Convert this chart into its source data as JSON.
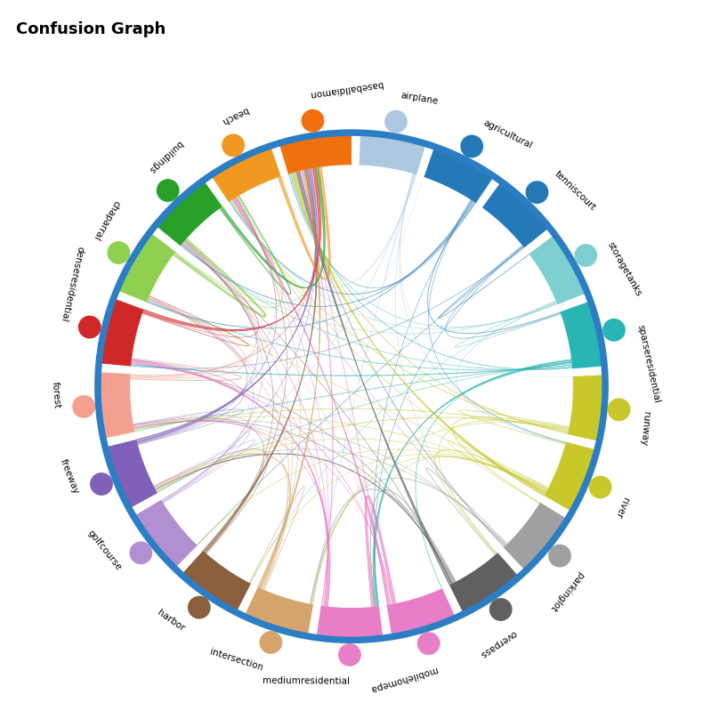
{
  "title": "Confusion Graph",
  "categories": [
    "airplane",
    "agricultural",
    "tenniscourt",
    "storagetanks",
    "sparseresidential",
    "runway",
    "river",
    "parkinglot",
    "overpass",
    "mobilehomepa",
    "mediumresidential",
    "intersection",
    "harbor",
    "golfcourse",
    "freeway",
    "forest",
    "denseresidential",
    "chaparral",
    "buildings",
    "beach",
    "baseballdiamon"
  ],
  "cat_colors": [
    "#adc8e0",
    "#2479b8",
    "#2479b8",
    "#7ecfcf",
    "#2ab5b5",
    "#c8c82a",
    "#c8c82a",
    "#a0a0a0",
    "#606060",
    "#e87ec8",
    "#e87ec8",
    "#d4a46c",
    "#8b5e3c",
    "#b090d0",
    "#8060b8",
    "#f4a090",
    "#d02828",
    "#90d050",
    "#28a028",
    "#f09820",
    "#f07010"
  ],
  "node_colors": [
    "#adc8e0",
    "#2479b8",
    "#2479b8",
    "#7ecfcf",
    "#2ab5b5",
    "#c8c82a",
    "#c8c82a",
    "#a0a0a0",
    "#606060",
    "#e87ec8",
    "#e87ec8",
    "#d4a46c",
    "#8b5e3c",
    "#b090d0",
    "#8060b8",
    "#f4a090",
    "#d02828",
    "#90d050",
    "#28a028",
    "#f09820",
    "#f07010"
  ],
  "confusion_matrix": [
    [
      93,
      1,
      0,
      0,
      0,
      0,
      1,
      0,
      1,
      0,
      0,
      1,
      0,
      0,
      1,
      0,
      0,
      1,
      0,
      1,
      0
    ],
    [
      0,
      89,
      0,
      0,
      2,
      0,
      1,
      0,
      0,
      0,
      1,
      0,
      0,
      0,
      0,
      0,
      0,
      2,
      2,
      2,
      1
    ],
    [
      0,
      0,
      94,
      2,
      1,
      0,
      0,
      0,
      0,
      0,
      1,
      0,
      0,
      1,
      0,
      0,
      1,
      0,
      0,
      0,
      0
    ],
    [
      0,
      0,
      2,
      90,
      2,
      0,
      1,
      0,
      0,
      0,
      0,
      0,
      1,
      0,
      0,
      0,
      0,
      0,
      1,
      1,
      2
    ],
    [
      0,
      2,
      1,
      2,
      78,
      0,
      0,
      0,
      0,
      2,
      4,
      0,
      0,
      0,
      1,
      2,
      3,
      2,
      1,
      0,
      2
    ],
    [
      1,
      0,
      0,
      0,
      0,
      85,
      2,
      2,
      1,
      0,
      0,
      1,
      0,
      0,
      2,
      2,
      0,
      0,
      0,
      2,
      2
    ],
    [
      1,
      1,
      0,
      1,
      0,
      2,
      79,
      1,
      2,
      0,
      1,
      1,
      1,
      1,
      1,
      1,
      0,
      1,
      0,
      1,
      5
    ],
    [
      0,
      0,
      0,
      0,
      0,
      2,
      1,
      87,
      2,
      0,
      0,
      2,
      0,
      0,
      1,
      1,
      0,
      0,
      0,
      1,
      3
    ],
    [
      2,
      0,
      0,
      0,
      0,
      1,
      2,
      2,
      80,
      0,
      1,
      1,
      0,
      0,
      3,
      1,
      1,
      0,
      1,
      0,
      5
    ],
    [
      0,
      0,
      0,
      0,
      2,
      0,
      0,
      0,
      0,
      82,
      5,
      0,
      0,
      0,
      0,
      1,
      2,
      0,
      2,
      4,
      2
    ],
    [
      0,
      1,
      1,
      0,
      4,
      0,
      1,
      0,
      1,
      5,
      74,
      0,
      0,
      0,
      0,
      2,
      4,
      1,
      2,
      1,
      3
    ],
    [
      1,
      0,
      0,
      0,
      0,
      1,
      1,
      2,
      1,
      0,
      0,
      81,
      2,
      0,
      3,
      1,
      0,
      1,
      1,
      1,
      4
    ],
    [
      0,
      0,
      0,
      1,
      0,
      0,
      1,
      0,
      0,
      0,
      0,
      2,
      88,
      0,
      1,
      1,
      0,
      0,
      1,
      1,
      4
    ],
    [
      0,
      0,
      1,
      0,
      0,
      0,
      1,
      0,
      0,
      0,
      0,
      0,
      0,
      91,
      1,
      1,
      1,
      1,
      1,
      0,
      2
    ],
    [
      1,
      0,
      0,
      0,
      1,
      2,
      1,
      1,
      3,
      0,
      0,
      3,
      1,
      1,
      75,
      1,
      1,
      1,
      1,
      1,
      5
    ],
    [
      0,
      0,
      0,
      0,
      2,
      2,
      1,
      1,
      1,
      1,
      2,
      1,
      1,
      1,
      1,
      76,
      3,
      2,
      1,
      1,
      3
    ],
    [
      0,
      0,
      1,
      0,
      3,
      0,
      0,
      0,
      1,
      2,
      4,
      0,
      0,
      0,
      1,
      3,
      77,
      2,
      1,
      0,
      5
    ],
    [
      0,
      2,
      0,
      0,
      2,
      0,
      1,
      0,
      0,
      0,
      1,
      1,
      0,
      1,
      1,
      2,
      2,
      80,
      4,
      2,
      1
    ],
    [
      0,
      2,
      0,
      1,
      1,
      0,
      0,
      0,
      1,
      0,
      2,
      1,
      1,
      1,
      1,
      1,
      1,
      4,
      75,
      3,
      4
    ],
    [
      1,
      2,
      0,
      1,
      0,
      2,
      1,
      1,
      0,
      4,
      1,
      1,
      1,
      0,
      1,
      1,
      0,
      2,
      3,
      73,
      5
    ],
    [
      0,
      1,
      0,
      2,
      2,
      2,
      5,
      3,
      5,
      2,
      3,
      4,
      4,
      2,
      5,
      3,
      5,
      1,
      4,
      5,
      52
    ]
  ]
}
